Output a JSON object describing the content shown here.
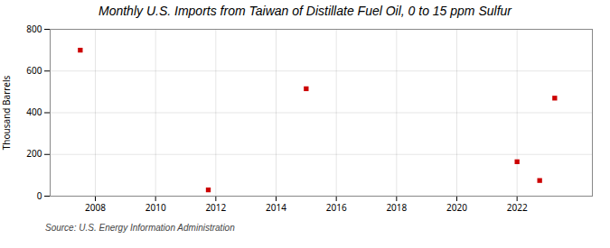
{
  "chart_data": {
    "type": "scatter",
    "title": "Monthly U.S. Imports from Taiwan of Distillate Fuel Oil, 0 to 15 ppm Sulfur",
    "ylabel": "Thousand Barrels",
    "source": "Source: U.S. Energy Information Administration",
    "x": [
      2007.5,
      2011.75,
      2015.0,
      2022.0,
      2022.75,
      2023.25
    ],
    "values": [
      700,
      30,
      515,
      165,
      75,
      470
    ],
    "color": "#cc0000",
    "marker": "square",
    "xlim": [
      2006.5,
      2024.5
    ],
    "ylim": [
      0,
      800
    ],
    "xticks": [
      2008,
      2010,
      2012,
      2014,
      2016,
      2018,
      2020,
      2022
    ],
    "yticks": [
      0,
      200,
      400,
      600,
      800
    ],
    "grid": true
  }
}
